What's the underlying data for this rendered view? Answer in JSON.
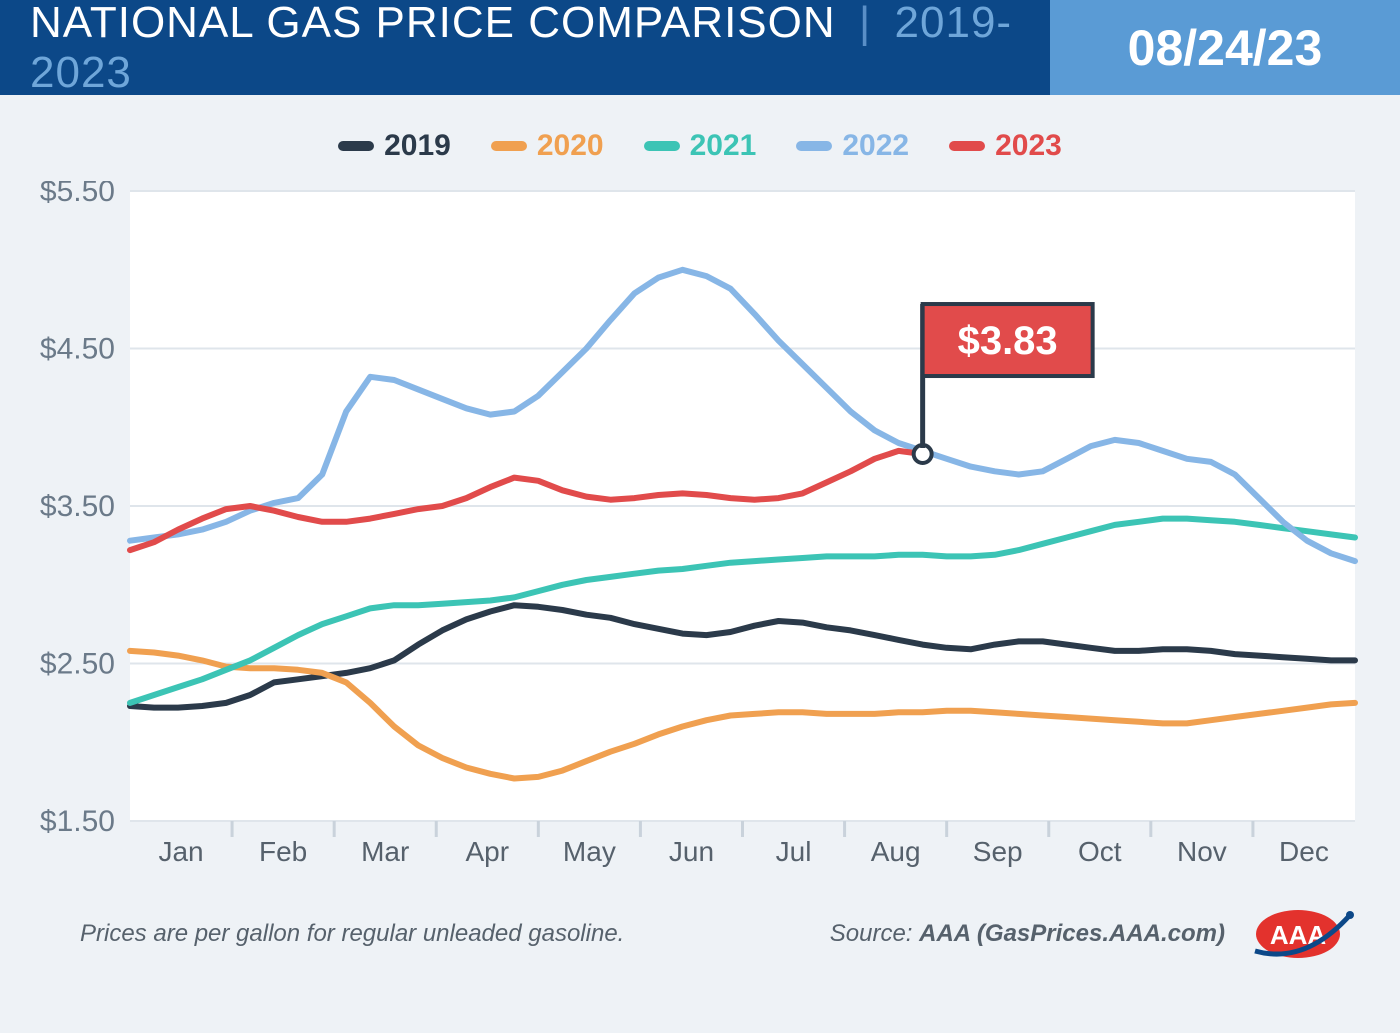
{
  "header": {
    "title_main": "NATIONAL GAS PRICE COMPARISON",
    "title_separator": "|",
    "title_range": "2019-2023",
    "date": "08/24/23",
    "bg_left": "#0c4888",
    "bg_right": "#5a9bd5"
  },
  "page_bg": "#eef2f6",
  "chart": {
    "type": "line",
    "plot_bg": "#ffffff",
    "grid_color": "#dfe5eb",
    "axis_tick_color": "#c9d2db",
    "ylim": [
      1.5,
      5.5
    ],
    "yticks": [
      1.5,
      2.5,
      3.5,
      4.5,
      5.5
    ],
    "ytick_labels": [
      "$1.50",
      "$2.50",
      "$3.50",
      "$4.50",
      "$5.50"
    ],
    "x_months": [
      "Jan",
      "Feb",
      "Mar",
      "Apr",
      "May",
      "Jun",
      "Jul",
      "Aug",
      "Sep",
      "Oct",
      "Nov",
      "Dec"
    ],
    "line_width": 6,
    "callout": {
      "label": "$3.83",
      "value": 3.83,
      "series": "2023",
      "bg": "#e14b4b",
      "border": "#2b3a4a",
      "text_color": "#ffffff"
    },
    "series": [
      {
        "name": "2019",
        "color": "#2b3a4a",
        "values": [
          2.23,
          2.22,
          2.22,
          2.23,
          2.25,
          2.3,
          2.38,
          2.4,
          2.42,
          2.44,
          2.47,
          2.52,
          2.62,
          2.71,
          2.78,
          2.83,
          2.87,
          2.86,
          2.84,
          2.81,
          2.79,
          2.75,
          2.72,
          2.69,
          2.68,
          2.7,
          2.74,
          2.77,
          2.76,
          2.73,
          2.71,
          2.68,
          2.65,
          2.62,
          2.6,
          2.59,
          2.62,
          2.64,
          2.64,
          2.62,
          2.6,
          2.58,
          2.58,
          2.59,
          2.59,
          2.58,
          2.56,
          2.55,
          2.54,
          2.53,
          2.52,
          2.52
        ]
      },
      {
        "name": "2020",
        "color": "#f0a050",
        "values": [
          2.58,
          2.57,
          2.55,
          2.52,
          2.48,
          2.47,
          2.47,
          2.46,
          2.44,
          2.38,
          2.25,
          2.1,
          1.98,
          1.9,
          1.84,
          1.8,
          1.77,
          1.78,
          1.82,
          1.88,
          1.94,
          1.99,
          2.05,
          2.1,
          2.14,
          2.17,
          2.18,
          2.19,
          2.19,
          2.18,
          2.18,
          2.18,
          2.19,
          2.19,
          2.2,
          2.2,
          2.19,
          2.18,
          2.17,
          2.16,
          2.15,
          2.14,
          2.13,
          2.12,
          2.12,
          2.14,
          2.16,
          2.18,
          2.2,
          2.22,
          2.24,
          2.25
        ]
      },
      {
        "name": "2021",
        "color": "#3cc4b5",
        "values": [
          2.25,
          2.3,
          2.35,
          2.4,
          2.46,
          2.52,
          2.6,
          2.68,
          2.75,
          2.8,
          2.85,
          2.87,
          2.87,
          2.88,
          2.89,
          2.9,
          2.92,
          2.96,
          3.0,
          3.03,
          3.05,
          3.07,
          3.09,
          3.1,
          3.12,
          3.14,
          3.15,
          3.16,
          3.17,
          3.18,
          3.18,
          3.18,
          3.19,
          3.19,
          3.18,
          3.18,
          3.19,
          3.22,
          3.26,
          3.3,
          3.34,
          3.38,
          3.4,
          3.42,
          3.42,
          3.41,
          3.4,
          3.38,
          3.36,
          3.34,
          3.32,
          3.3
        ]
      },
      {
        "name": "2022",
        "color": "#87b6e6",
        "values": [
          3.28,
          3.3,
          3.32,
          3.35,
          3.4,
          3.47,
          3.52,
          3.55,
          3.7,
          4.1,
          4.32,
          4.3,
          4.24,
          4.18,
          4.12,
          4.08,
          4.1,
          4.2,
          4.35,
          4.5,
          4.68,
          4.85,
          4.95,
          5.0,
          4.96,
          4.88,
          4.72,
          4.55,
          4.4,
          4.25,
          4.1,
          3.98,
          3.9,
          3.85,
          3.8,
          3.75,
          3.72,
          3.7,
          3.72,
          3.8,
          3.88,
          3.92,
          3.9,
          3.85,
          3.8,
          3.78,
          3.7,
          3.55,
          3.4,
          3.28,
          3.2,
          3.15
        ]
      },
      {
        "name": "2023",
        "color": "#e14b4b",
        "values": [
          3.22,
          3.27,
          3.35,
          3.42,
          3.48,
          3.5,
          3.47,
          3.43,
          3.4,
          3.4,
          3.42,
          3.45,
          3.48,
          3.5,
          3.55,
          3.62,
          3.68,
          3.66,
          3.6,
          3.56,
          3.54,
          3.55,
          3.57,
          3.58,
          3.57,
          3.55,
          3.54,
          3.55,
          3.58,
          3.65,
          3.72,
          3.8,
          3.85,
          3.83
        ]
      }
    ]
  },
  "legend": [
    {
      "label": "2019",
      "color": "#2b3a4a"
    },
    {
      "label": "2020",
      "color": "#f0a050"
    },
    {
      "label": "2021",
      "color": "#3cc4b5"
    },
    {
      "label": "2022",
      "color": "#87b6e6"
    },
    {
      "label": "2023",
      "color": "#e14b4b"
    }
  ],
  "footer": {
    "note": "Prices are per gallon for regular unleaded gasoline.",
    "source_prefix": "Source: ",
    "source_bold": "AAA (GasPrices.AAA.com)",
    "logo_text": "AAA",
    "logo_oval_fill": "#e3322d",
    "logo_swoosh": "#0c4888"
  }
}
